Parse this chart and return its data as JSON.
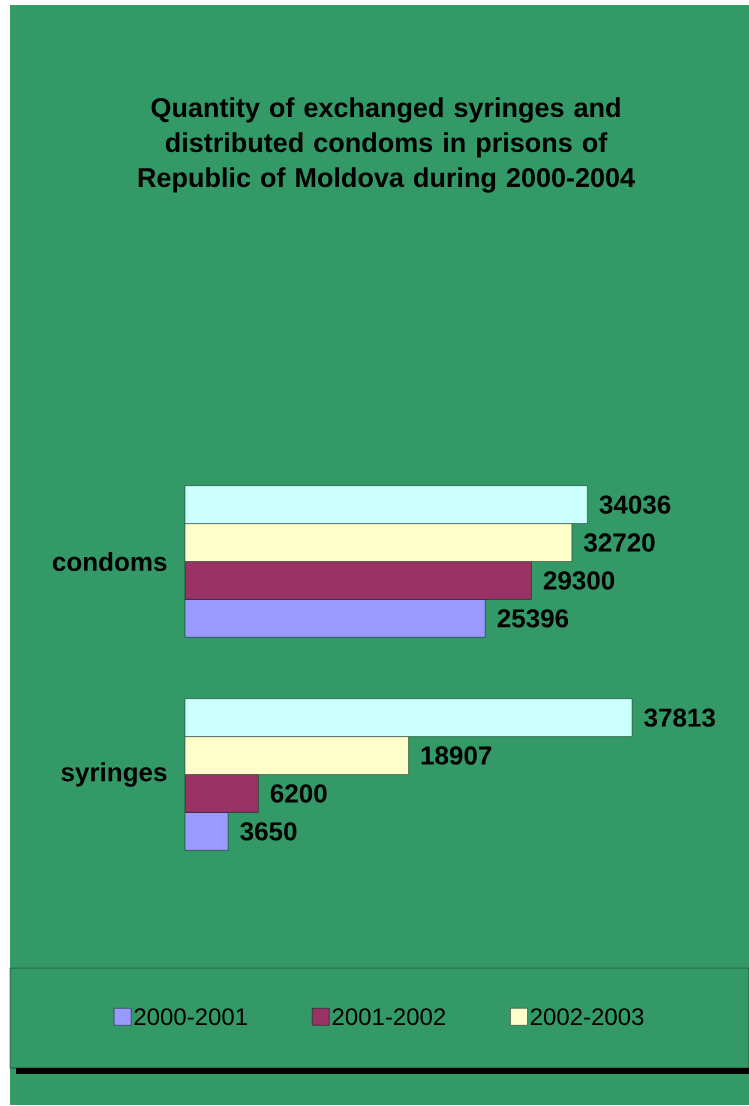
{
  "chart_data": {
    "type": "bar",
    "orientation": "horizontal",
    "title": "Quantity of exchanged syringes and distributed condoms in prisons of Republic of Moldova during 2000-2004",
    "categories": [
      "condoms",
      "syringes"
    ],
    "series": [
      {
        "name": "2000-2001",
        "color": "#9999ff",
        "values": [
          25396,
          3650
        ]
      },
      {
        "name": "2001-2002",
        "color": "#993366",
        "values": [
          29300,
          6200
        ]
      },
      {
        "name": "2002-2003",
        "color": "#ffffcc",
        "values": [
          32720,
          18907
        ]
      },
      {
        "color": "#ccffff",
        "values": [
          34036,
          37813
        ]
      }
    ],
    "data_labels": true,
    "legend": "bottom"
  }
}
